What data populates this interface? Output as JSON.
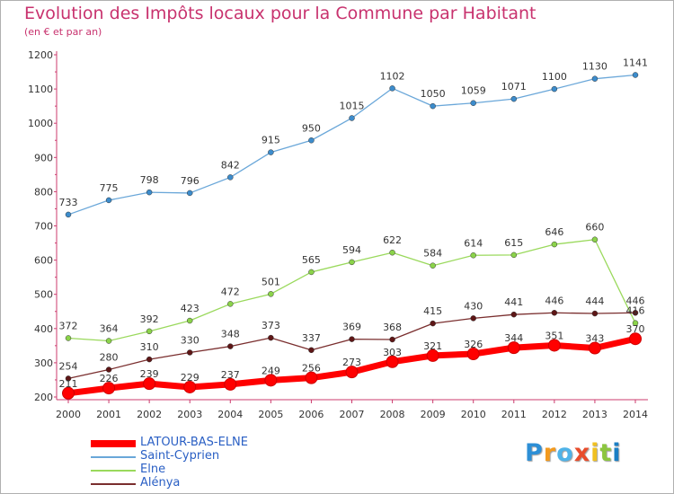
{
  "chart_data": {
    "type": "line",
    "title": "Evolution des Impôts locaux pour la Commune par Habitant",
    "subtitle": "(en € et par an)",
    "xlabel": "",
    "ylabel": "",
    "x": [
      "2000",
      "2001",
      "2002",
      "2003",
      "2004",
      "2005",
      "2006",
      "2007",
      "2008",
      "2009",
      "2010",
      "2011",
      "2012",
      "2013",
      "2014"
    ],
    "ylim": [
      200,
      1200
    ],
    "yticks": [
      200,
      300,
      400,
      500,
      600,
      700,
      800,
      900,
      1000,
      1100,
      1200
    ],
    "grid": false,
    "legend_position": "bottom-left",
    "series": [
      {
        "name": "LATOUR-BAS-ELNE",
        "color": "#ff0000",
        "values": [
          211,
          226,
          239,
          229,
          237,
          249,
          256,
          273,
          303,
          321,
          326,
          344,
          351,
          343,
          370
        ]
      },
      {
        "name": "Saint-Cyprien",
        "color": "#6aa7d9",
        "marker_color": "#3c8ccc",
        "values": [
          733,
          775,
          798,
          796,
          842,
          915,
          950,
          1015,
          1102,
          1050,
          1059,
          1071,
          1100,
          1130,
          1141
        ]
      },
      {
        "name": "Elne",
        "color": "#9ad95c",
        "marker_color": "#8bd34a",
        "values": [
          372,
          364,
          392,
          423,
          472,
          501,
          565,
          594,
          622,
          584,
          614,
          615,
          646,
          660,
          416
        ]
      },
      {
        "name": "Alénya",
        "color": "#7a2e2e",
        "marker_color": "#5e1616",
        "values": [
          254,
          280,
          310,
          330,
          348,
          373,
          337,
          369,
          368,
          415,
          430,
          441,
          446,
          444,
          446
        ]
      }
    ]
  },
  "logo": {
    "letters": [
      "P",
      "r",
      "o",
      "x",
      "i",
      "t",
      "i"
    ],
    "colors": [
      "#2d8fd6",
      "#f39a1e",
      "#4fb3e8",
      "#e84d2c",
      "#f0c020",
      "#8cc63f",
      "#1b7fc4"
    ]
  }
}
